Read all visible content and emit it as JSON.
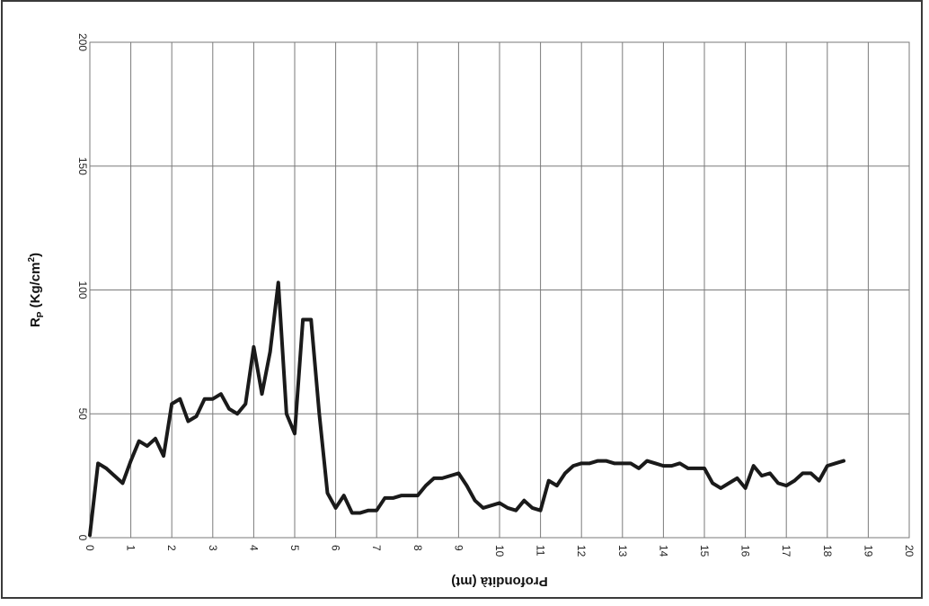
{
  "chart_data": {
    "type": "line",
    "xlabel": "Profondità (mt)",
    "ylabel": "Rp (Kg/cm2)",
    "ylabel_main": "R",
    "ylabel_sub": "P",
    "ylabel_rest": " (Kg/cm",
    "ylabel_sup": "2",
    "ylabel_close": ")",
    "xlim": [
      0,
      20
    ],
    "ylim": [
      0,
      200
    ],
    "x_ticks": [
      "0",
      "1",
      "2",
      "3",
      "4",
      "5",
      "6",
      "7",
      "8",
      "9",
      "10",
      "11",
      "12",
      "13",
      "14",
      "15",
      "16",
      "17",
      "18",
      "19",
      "20"
    ],
    "y_ticks": [
      "0",
      "50",
      "100",
      "150",
      "200"
    ],
    "grid": true,
    "legend": false,
    "series": [
      {
        "x": [
          0.0,
          0.2,
          0.4,
          0.6,
          0.8,
          1.0,
          1.2,
          1.4,
          1.6,
          1.8,
          2.0,
          2.2,
          2.4,
          2.6,
          2.8,
          3.0,
          3.2,
          3.4,
          3.6,
          3.8,
          4.0,
          4.2,
          4.4,
          4.6,
          4.8,
          5.0,
          5.2,
          5.4,
          5.6,
          5.8,
          6.0,
          6.2,
          6.4,
          6.6,
          6.8,
          7.0,
          7.2,
          7.4,
          7.6,
          7.8,
          8.0,
          8.2,
          8.4,
          8.6,
          8.8,
          9.0,
          9.2,
          9.4,
          9.6,
          9.8,
          10.0,
          10.2,
          10.4,
          10.6,
          10.8,
          11.0,
          11.2,
          11.4,
          11.6,
          11.8,
          12.0,
          12.2,
          12.4,
          12.6,
          12.8,
          13.0,
          13.2,
          13.4,
          13.6,
          13.8,
          14.0,
          14.2,
          14.4,
          14.6,
          14.8,
          15.0,
          15.2,
          15.4,
          15.6,
          15.8,
          16.0,
          16.2,
          16.4,
          16.6,
          16.8,
          17.0,
          17.2,
          17.4,
          17.6,
          17.8,
          18.0,
          18.2,
          18.4
        ],
        "values": [
          1,
          30,
          28,
          25,
          22,
          31,
          39,
          37,
          40,
          33,
          54,
          56,
          47,
          49,
          56,
          56,
          58,
          52,
          50,
          54,
          77,
          58,
          75,
          103,
          50,
          42,
          88,
          88,
          50,
          18,
          12,
          17,
          10,
          10,
          11,
          11,
          16,
          16,
          17,
          17,
          17,
          21,
          24,
          24,
          25,
          26,
          21,
          15,
          12,
          13,
          14,
          12,
          11,
          15,
          12,
          11,
          23,
          21,
          26,
          29,
          30,
          30,
          31,
          31,
          30,
          30,
          30,
          28,
          31,
          30,
          29,
          29,
          30,
          28,
          28,
          28,
          22,
          20,
          22,
          24,
          20,
          29,
          25,
          26,
          22,
          21,
          23,
          26,
          26,
          23,
          29,
          30,
          31
        ]
      }
    ]
  }
}
